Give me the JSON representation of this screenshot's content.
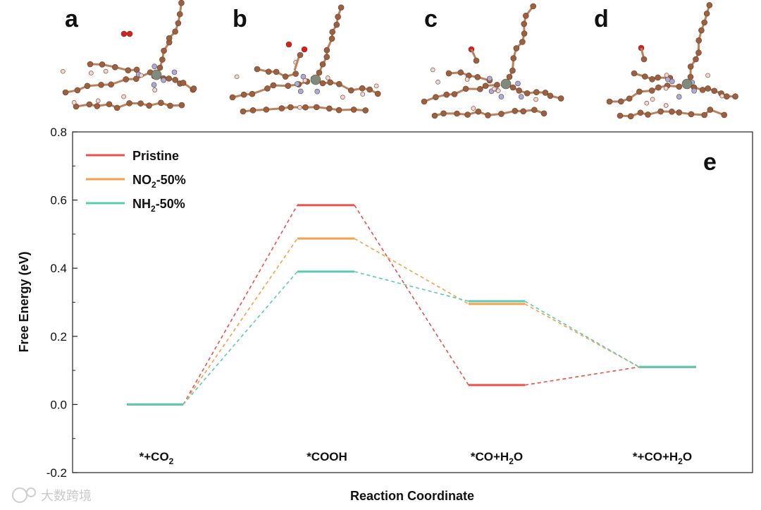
{
  "panels": [
    "a",
    "b",
    "c",
    "d"
  ],
  "watermark": "大数跨境",
  "chart_data": {
    "type": "line",
    "panel_label": "e",
    "title": "",
    "xlabel": "Reaction Coordinate",
    "ylabel": "Free Energy (eV)",
    "ylim": [
      -0.2,
      0.8
    ],
    "yticks": [
      "-0.2",
      "0.0",
      "0.2",
      "0.4",
      "0.6",
      "0.8"
    ],
    "ytick_values": [
      -0.2,
      0.0,
      0.2,
      0.4,
      0.6,
      0.8
    ],
    "categories": [
      {
        "pre": "*+CO",
        "sub": "2",
        "post": ""
      },
      {
        "pre": "*COOH",
        "sub": "",
        "post": ""
      },
      {
        "pre": "*CO+H",
        "sub": "2",
        "post": "O"
      },
      {
        "pre": "*+CO+H",
        "sub": "2",
        "post": "O"
      }
    ],
    "legend_position": "top-left",
    "series": [
      {
        "name_pre": "Pristine",
        "name_sub": "",
        "name_post": "",
        "color": "#e8524a",
        "values": [
          0.0,
          0.585,
          0.057,
          0.11
        ]
      },
      {
        "name_pre": "NO",
        "name_sub": "2",
        "name_post": "-50%",
        "color": "#f5a14a",
        "values": [
          0.0,
          0.487,
          0.295,
          0.11
        ]
      },
      {
        "name_pre": "NH",
        "name_sub": "2",
        "name_post": "-50%",
        "color": "#5ec8b6",
        "values": [
          0.0,
          0.39,
          0.303,
          0.11
        ]
      }
    ]
  }
}
